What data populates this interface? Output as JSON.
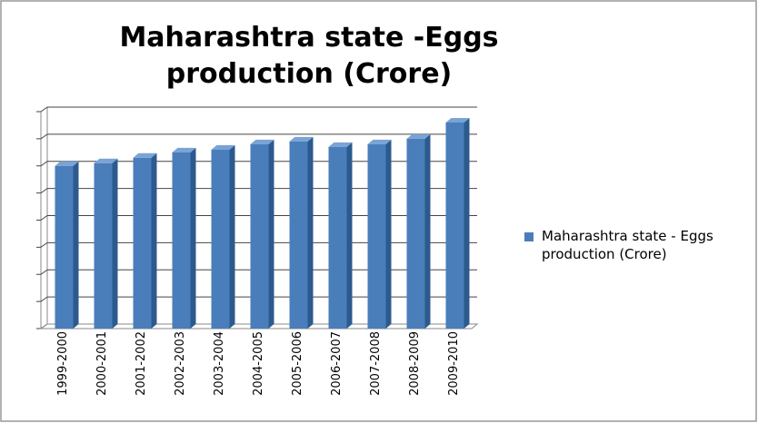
{
  "chart_data": {
    "type": "bar3d",
    "title": "Maharashtra  state -Eggs production (Crore)",
    "categories": [
      "1999-2000",
      "2000-2001",
      "2001-2002",
      "2002-2003",
      "2003-2004",
      "2004-2005",
      "2005-2006",
      "2006-2007",
      "2007-2008",
      "2008-2009",
      "2009-2010"
    ],
    "series": [
      {
        "name": "Maharashtra  state - Eggs production (Crore)",
        "color": "#4a7ebb",
        "values": [
          6.0,
          6.1,
          6.3,
          6.5,
          6.6,
          6.8,
          6.9,
          6.7,
          6.8,
          7.0,
          7.6
        ]
      }
    ],
    "ylim": [
      0,
      8
    ],
    "yticks": [
      0,
      1,
      2,
      3,
      4,
      5,
      6,
      7,
      8
    ],
    "grid": true,
    "legend": "right"
  }
}
